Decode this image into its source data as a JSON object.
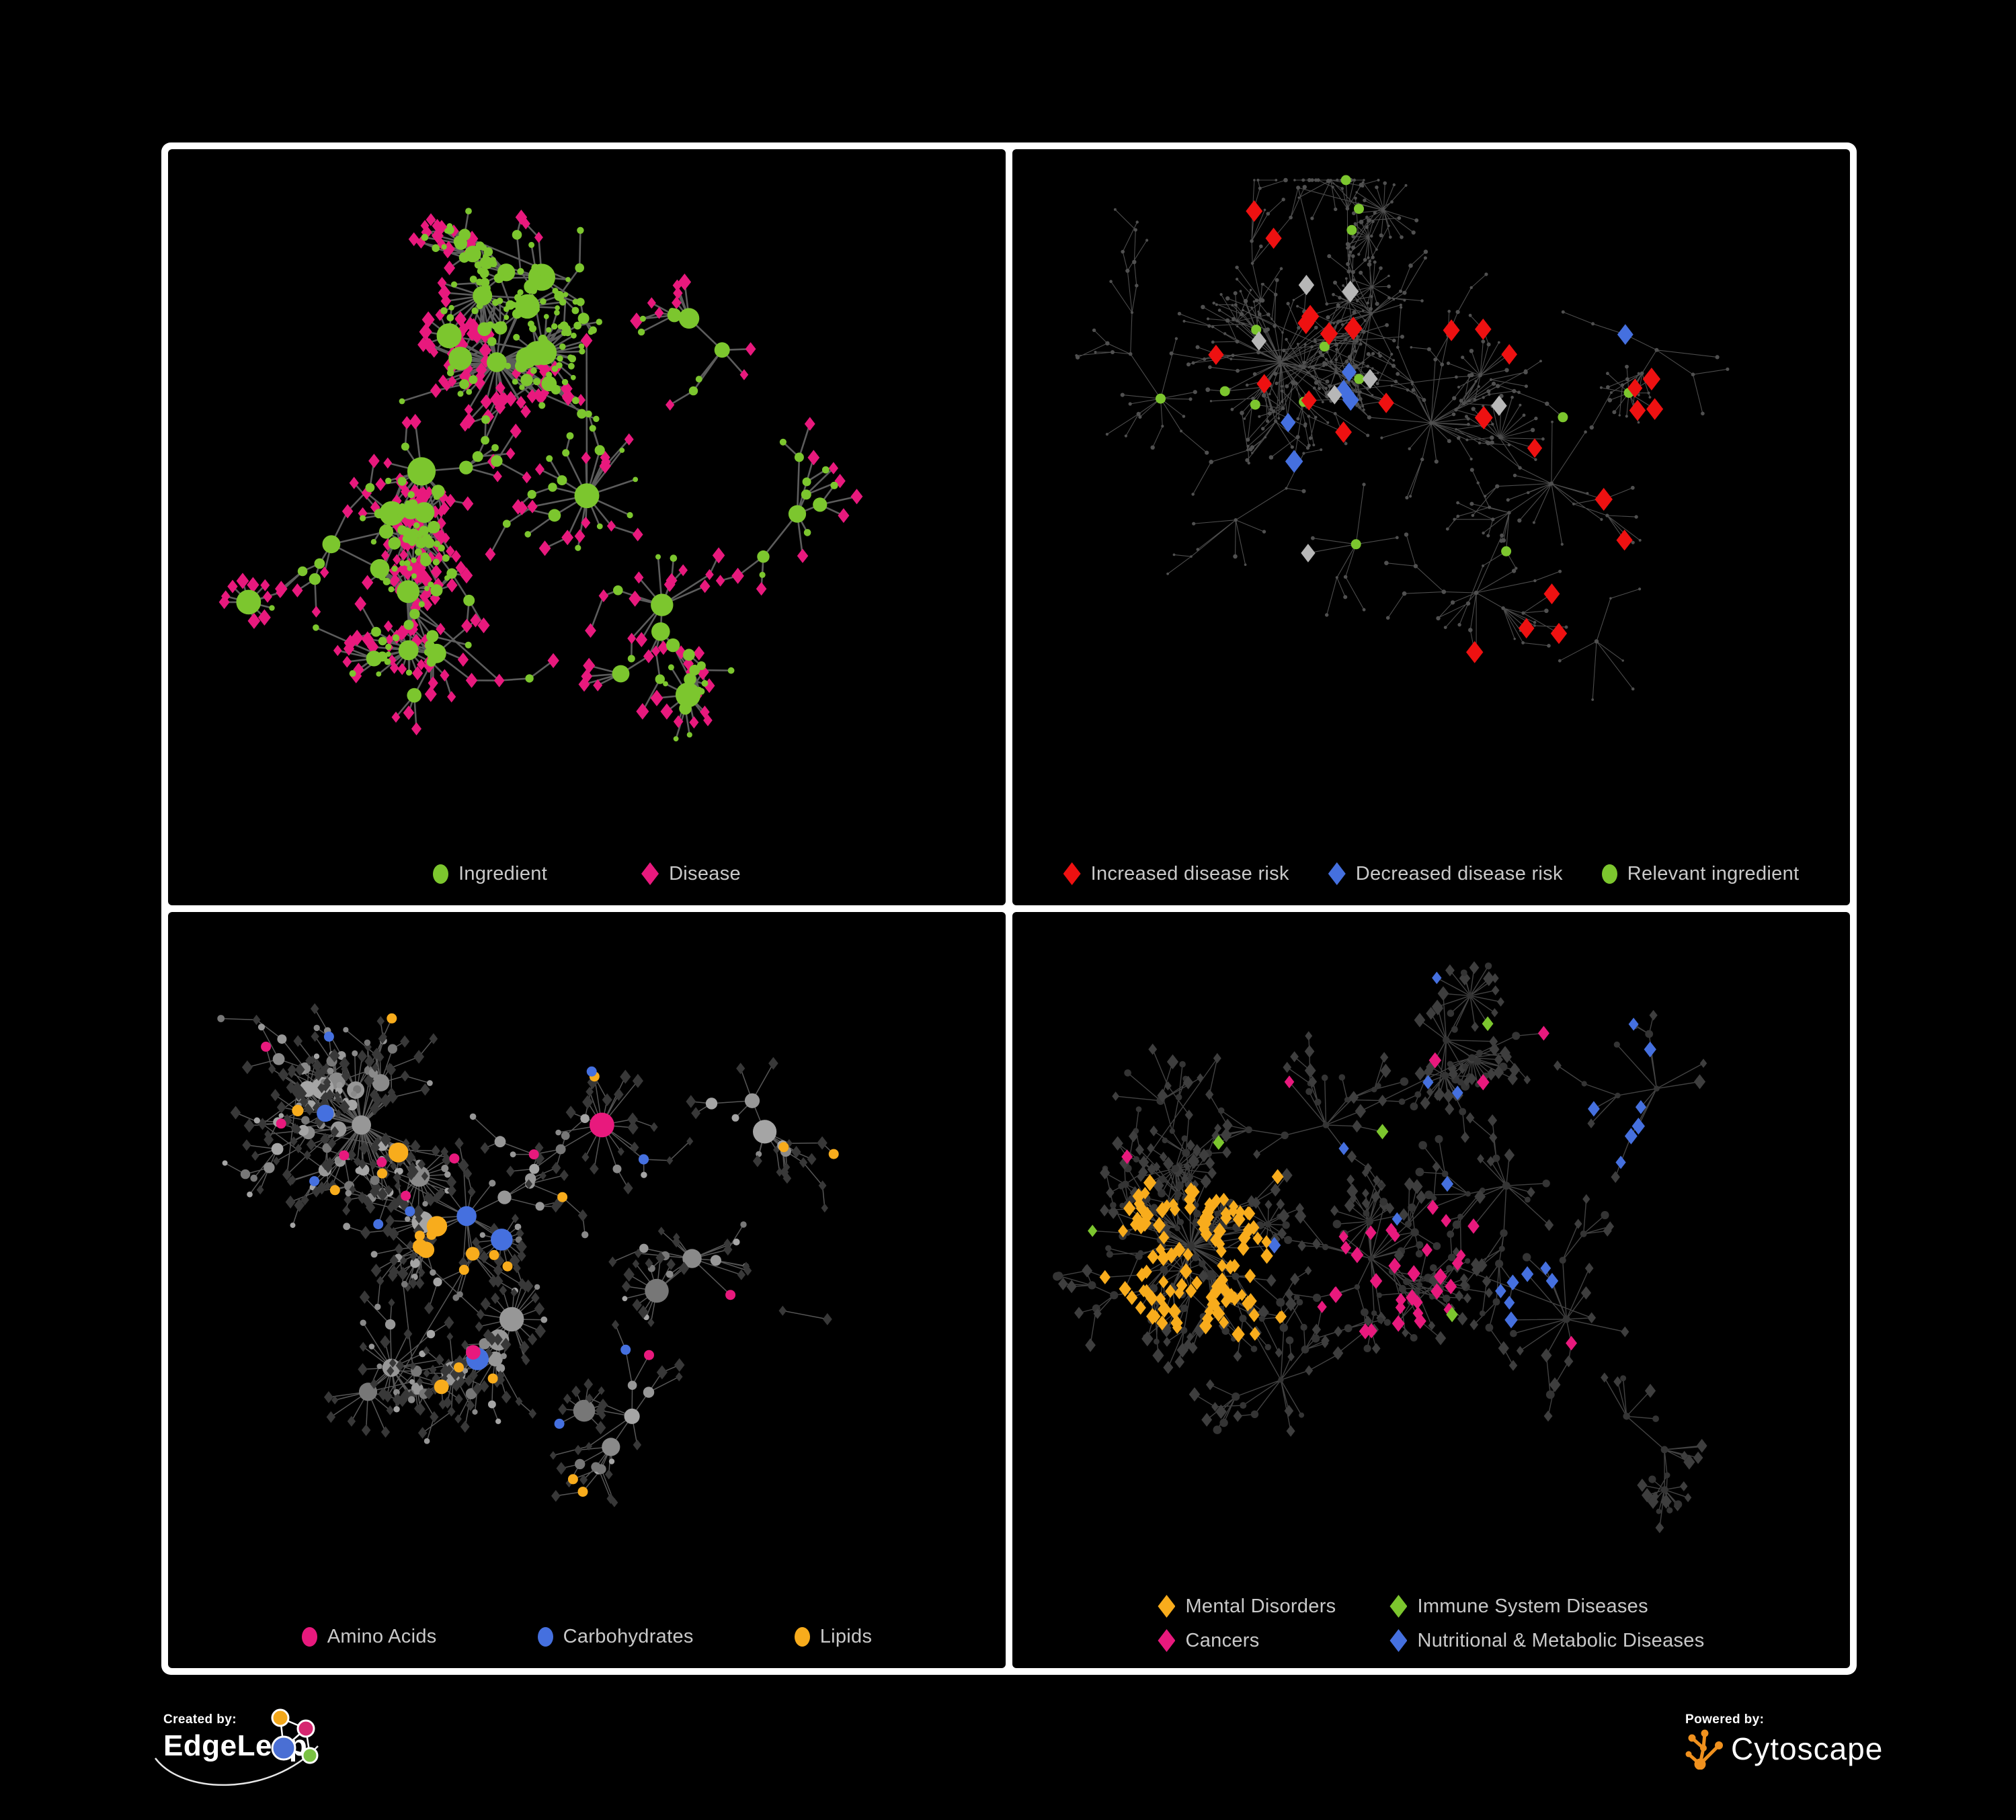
{
  "palette": {
    "green": "#7CC62E",
    "magenta": "#E8197D",
    "red": "#EE1111",
    "blue": "#4570DF",
    "gold": "#F8AC1C",
    "silver": "#B7B7B7",
    "tinyDot": "#505050",
    "p3Diamond": "#383838",
    "p4Circle": "#343434",
    "p4Diamond": "#3E3E3E",
    "edgeP1": "#6C6C6C",
    "edgeP2": "#8A8A8A",
    "edgeP3": "#7C7C7C",
    "edgeP4": "#6E6E6E",
    "legendText": "#C9C9C9",
    "white": "#FFFFFF",
    "cytoOrange": "#F0911E",
    "elOrange": "#F2A71B",
    "elMagenta": "#D62770",
    "elBlue": "#4A6FD4",
    "elGreen": "#7AC143"
  },
  "panels": [
    {
      "id": "ingredient-disease",
      "legend": [
        {
          "shape": "circle",
          "color": "green",
          "label": "Ingredient"
        },
        {
          "shape": "diamond",
          "color": "magenta",
          "label": "Disease"
        }
      ],
      "net": {
        "seed": 7,
        "n": 500,
        "step": 38,
        "spread": 1.7,
        "hub_bias": 2.6,
        "bursts": 11,
        "cross": 0.05,
        "clusters": [
          [
            0.38,
            0.3
          ],
          [
            0.28,
            0.48
          ],
          [
            0.5,
            0.52
          ],
          [
            0.44,
            0.16
          ],
          [
            0.68,
            0.28
          ],
          [
            0.6,
            0.7
          ],
          [
            0.3,
            0.78
          ],
          [
            0.78,
            0.55
          ],
          [
            0.16,
            0.6
          ]
        ],
        "style": {
          "mode": "p1",
          "green_regions": [
            [
              0.44,
              0.17,
              0.1,
              0.9
            ],
            [
              0.53,
              0.3,
              0.07,
              0.9
            ],
            [
              0.47,
              0.41,
              0.05,
              0.8
            ]
          ],
          "circle_base": 4.5,
          "circle_k": 1.5,
          "circle_max": 17,
          "diamond_s": 9.5,
          "edge_color": "edgeP1",
          "edge_w": 2.6,
          "edge_op": 0.85
        }
      }
    },
    {
      "id": "disease-risk",
      "legend": [
        {
          "shape": "diamond",
          "color": "red",
          "label": "Increased disease risk"
        },
        {
          "shape": "diamond",
          "color": "blue",
          "label": "Decreased disease risk"
        },
        {
          "shape": "circle",
          "color": "green",
          "label": "Relevant ingredient"
        }
      ],
      "net": {
        "seed": 13,
        "n": 540,
        "step": 42,
        "spread": 1.9,
        "hub_bias": 2.2,
        "bursts": 13,
        "cross": 0.035,
        "clusters": [
          [
            0.3,
            0.3
          ],
          [
            0.5,
            0.4
          ],
          [
            0.42,
            0.22
          ],
          [
            0.66,
            0.5
          ],
          [
            0.24,
            0.56
          ],
          [
            0.56,
            0.68
          ],
          [
            0.8,
            0.28
          ],
          [
            0.72,
            0.76
          ],
          [
            0.4,
            0.6
          ],
          [
            0.14,
            0.36
          ]
        ],
        "style": {
          "mode": "muted",
          "dot_r": 2.4,
          "dot_color": "tinyDot",
          "edge_color": "edgeP2",
          "edge_w": 1.1,
          "edge_op": 0.55,
          "specials": [
            {
              "color": "red",
              "shape": "diamond",
              "size": 15,
              "count": 22,
              "region": [
                0.5,
                0.42,
                0.45
              ],
              "node": "d"
            },
            {
              "color": "red",
              "shape": "diamond",
              "size": 14,
              "count": 2,
              "region": [
                0.62,
                0.85,
                0.12
              ],
              "node": "d"
            },
            {
              "color": "red",
              "shape": "diamond",
              "size": 14,
              "count": 2,
              "region": [
                0.78,
                0.42,
                0.1
              ],
              "node": "d"
            },
            {
              "color": "blue",
              "shape": "diamond",
              "size": 15,
              "count": 5,
              "region": [
                0.32,
                0.4,
                0.12
              ],
              "node": "d"
            },
            {
              "color": "blue",
              "shape": "diamond",
              "size": 15,
              "count": 4,
              "region": [
                0.84,
                0.22,
                0.1
              ],
              "node": "d"
            },
            {
              "color": "silver",
              "shape": "diamond",
              "size": 14,
              "count": 7,
              "region": [
                0.48,
                0.45,
                0.35
              ],
              "node": "d"
            },
            {
              "color": "green",
              "shape": "circle",
              "size": 7.5,
              "count": 14,
              "region": [
                0.42,
                0.38,
                0.4
              ],
              "node": "i"
            }
          ]
        }
      }
    },
    {
      "id": "nutrient-classes",
      "legend": [
        {
          "shape": "circle",
          "color": "magenta",
          "label": "Amino Acids"
        },
        {
          "shape": "circle",
          "color": "blue",
          "label": "Carbohydrates"
        },
        {
          "shape": "circle",
          "color": "gold",
          "label": "Lipids"
        }
      ],
      "net": {
        "seed": 21,
        "n": 500,
        "step": 38,
        "spread": 1.8,
        "hub_bias": 2.6,
        "bursts": 12,
        "cross": 0.05,
        "clusters": [
          [
            0.2,
            0.3
          ],
          [
            0.34,
            0.45
          ],
          [
            0.52,
            0.3
          ],
          [
            0.4,
            0.62
          ],
          [
            0.64,
            0.52
          ],
          [
            0.24,
            0.7
          ],
          [
            0.72,
            0.26
          ],
          [
            0.56,
            0.78
          ],
          [
            0.82,
            0.62
          ]
        ],
        "style": {
          "mode": "classes",
          "target": "i",
          "gray_shades": [
            "#979797",
            "#8A8A8A",
            "#A5A5A5",
            "#777777"
          ],
          "muted_diamond": "p3Diamond",
          "diamond_s": 8,
          "circle_base": 4.5,
          "circle_k": 1.3,
          "circle_max": 15,
          "circle_r": 5,
          "base_circle": "p4Circle",
          "colored_s": 10,
          "edge_color": "edgeP3",
          "edge_w": 1.5,
          "edge_op": 0.7,
          "classes": [
            {
              "color": "blue",
              "regions": [
                [
                  0.44,
                  0.22,
                  0.07,
                  0.5
                ],
                [
                  0.38,
                  0.47,
                  0.05,
                  0.5
                ]
              ],
              "scatter": 0.015
            },
            {
              "color": "gold",
              "regions": [
                [
                  0.45,
                  0.18,
                  0.1,
                  0.9
                ],
                [
                  0.34,
                  0.5,
                  0.07,
                  0.85
                ],
                [
                  0.52,
                  0.42,
                  0.06,
                  0.7
                ]
              ],
              "scatter": 0.05
            },
            {
              "color": "magenta",
              "regions": [
                [
                  0.82,
                  0.82,
                  0.07,
                  0.7
                ]
              ],
              "scatter": 0.055
            }
          ]
        }
      }
    },
    {
      "id": "disease-categories",
      "legend": [
        {
          "shape": "diamond",
          "color": "gold",
          "label": "Mental Disorders"
        },
        {
          "shape": "diamond",
          "color": "green",
          "label": "Immune System Diseases"
        },
        {
          "shape": "diamond",
          "color": "magenta",
          "label": "Cancers"
        },
        {
          "shape": "diamond",
          "color": "blue",
          "label": "Nutritional & Metabolic Diseases"
        }
      ],
      "net": {
        "seed": 29,
        "n": 540,
        "step": 40,
        "spread": 1.9,
        "hub_bias": 2.3,
        "bursts": 13,
        "cross": 0.045,
        "clusters": [
          [
            0.18,
            0.5
          ],
          [
            0.42,
            0.52
          ],
          [
            0.36,
            0.3
          ],
          [
            0.6,
            0.4
          ],
          [
            0.68,
            0.62
          ],
          [
            0.3,
            0.72
          ],
          [
            0.52,
            0.16
          ],
          [
            0.8,
            0.24
          ],
          [
            0.76,
            0.78
          ],
          [
            0.14,
            0.26
          ]
        ],
        "style": {
          "mode": "classes",
          "target": "d",
          "gray_shades": [
            "#3E3E3E"
          ],
          "muted_diamond": "p4Diamond",
          "diamond_s": 8.5,
          "circle_base": 4.5,
          "circle_k": 1.3,
          "circle_max": 15,
          "circle_r": 5,
          "base_circle": "p4Circle",
          "colored_s": 10,
          "edge_color": "edgeP4",
          "edge_w": 1.4,
          "edge_op": 0.6,
          "classes": [
            {
              "color": "gold",
              "regions": [
                [
                  0.17,
                  0.52,
                  0.12,
                  0.95
                ],
                [
                  0.25,
                  0.61,
                  0.06,
                  0.6
                ]
              ],
              "scatter": 0.012
            },
            {
              "color": "magenta",
              "regions": [
                [
                  0.44,
                  0.55,
                  0.1,
                  0.8
                ],
                [
                  0.52,
                  0.47,
                  0.06,
                  0.6
                ]
              ],
              "scatter": 0.012
            },
            {
              "color": "blue",
              "regions": [
                [
                  0.63,
                  0.6,
                  0.07,
                  0.85
                ],
                [
                  0.7,
                  0.33,
                  0.1,
                  0.5
                ],
                [
                  0.82,
                  0.18,
                  0.1,
                  0.5
                ],
                [
                  0.86,
                  0.5,
                  0.07,
                  0.5
                ]
              ],
              "scatter": 0.03
            },
            {
              "color": "green",
              "regions": [],
              "scatter": 0.012
            }
          ]
        }
      }
    }
  ],
  "credits": {
    "created_label": "Created by:",
    "created_name": "EdgeLeap",
    "powered_label": "Powered by:",
    "powered_name": "Cytoscape"
  }
}
